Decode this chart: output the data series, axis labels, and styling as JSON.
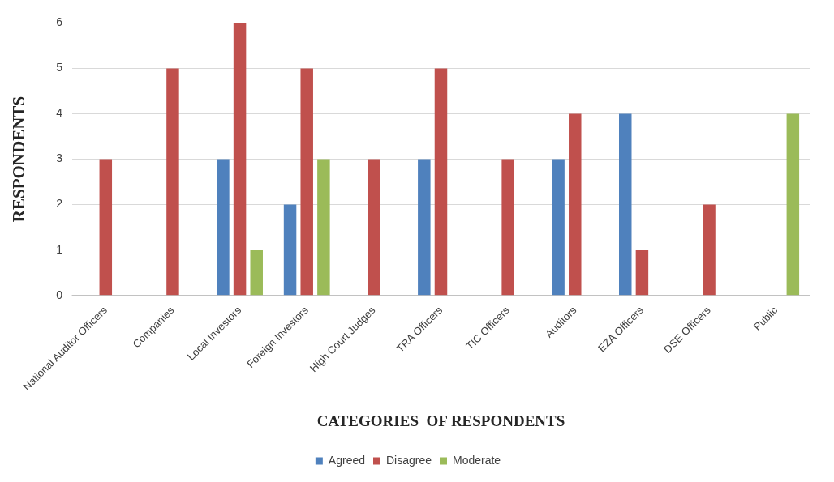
{
  "chart_data": {
    "type": "bar",
    "xlabel": "CATEGORIES  OF RESPONDENTS",
    "ylabel": "RESPONDENTS",
    "categories": [
      "National Auditor Officers",
      "Companies",
      "Local Investors",
      "Foreign Investors",
      "High Court Judges",
      "TRA Officers",
      "TIC Officers",
      "Auditors",
      "EZA Officers",
      "DSE Officers",
      "Public"
    ],
    "series": [
      {
        "name": "Agreed",
        "color": "#4f81bd",
        "values": [
          0,
          0,
          3,
          2,
          0,
          3,
          0,
          3,
          4,
          0,
          0
        ]
      },
      {
        "name": "Disagree",
        "color": "#c0504d",
        "values": [
          3,
          5,
          6,
          5,
          3,
          5,
          3,
          4,
          1,
          2,
          0
        ]
      },
      {
        "name": "Moderate",
        "color": "#9bbb59",
        "values": [
          0,
          0,
          1,
          3,
          0,
          0,
          0,
          0,
          0,
          0,
          4
        ]
      }
    ],
    "ylim": [
      0,
      6
    ],
    "yticks": [
      0,
      1,
      2,
      3,
      4,
      5,
      6
    ],
    "grid": "y",
    "legend": "bottom"
  }
}
